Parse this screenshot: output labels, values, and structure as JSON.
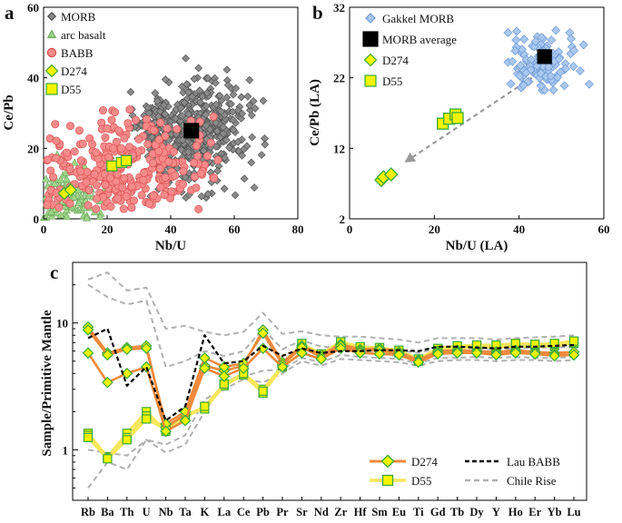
{
  "colors": {
    "morb": "#8a8a8a",
    "morb_stroke": "#4a4a4a",
    "arc": "#9fd58a",
    "arc_stroke": "#6aa55a",
    "babb": "#f58a8a",
    "babb_stroke": "#d84b4b",
    "d274": "#f4f400",
    "d274_stroke": "#3aa83a",
    "d55": "#f4f400",
    "d55_stroke": "#3aa83a",
    "gakkel": "#a9c8ef",
    "gakkel_stroke": "#6f9ad6",
    "avg": "#000000",
    "d274_line": "#f08a3c",
    "d55_line": "#f6e65a",
    "lau": "#000000",
    "chile": "#b0b0b0",
    "arrow": "#9a9a9a"
  },
  "chart_data": [
    {
      "panel": "a",
      "type": "scatter",
      "xlabel": "Nb/U",
      "ylabel": "Ce/Pb",
      "xlim": [
        0,
        80
      ],
      "ylim": [
        0,
        60
      ],
      "xticks": [
        "0",
        "20",
        "40",
        "60",
        "80"
      ],
      "yticks": [
        "0",
        "20",
        "40",
        "60"
      ],
      "legend": [
        "MORB",
        "arc basalt",
        "BABB",
        "D274",
        "D55"
      ],
      "series": [
        {
          "name": "MORB",
          "marker": "diamond",
          "cloud": {
            "center": [
              47,
              25
            ],
            "spread": [
              9,
              7
            ],
            "n": 520,
            "xrange": [
              15,
              78
            ],
            "yrange": [
              5,
              59
            ]
          }
        },
        {
          "name": "arc basalt",
          "marker": "triangle",
          "cloud": {
            "center": [
              7,
              5
            ],
            "spread": [
              5,
              5
            ],
            "n": 110,
            "xrange": [
              0,
              40
            ],
            "yrange": [
              0,
              24
            ]
          }
        },
        {
          "name": "BABB",
          "marker": "circle",
          "cloud": {
            "center": [
              25,
              14
            ],
            "spread": [
              15,
              7
            ],
            "n": 300,
            "xrange": [
              0,
              55
            ],
            "yrange": [
              2,
              38
            ]
          }
        },
        {
          "name": "D274",
          "marker": "diamond",
          "x": [
            6.5,
            8.5
          ],
          "y": [
            7.2,
            8.2
          ]
        },
        {
          "name": "D55",
          "marker": "square",
          "x": [
            21.5,
            24.5,
            26
          ],
          "y": [
            15,
            16,
            16.5
          ]
        }
      ],
      "highlight": {
        "name": "MORB average",
        "x": [
          46.5
        ],
        "y": [
          25
        ]
      }
    },
    {
      "panel": "b",
      "type": "scatter",
      "xlabel": "Nb/U (LA)",
      "ylabel": "Ce/Pb (LA)",
      "xlim": [
        0,
        60
      ],
      "ylim": [
        2,
        32
      ],
      "xticks": [
        "0",
        "20",
        "40",
        "60"
      ],
      "yticks": [
        "2",
        "12",
        "22",
        "32"
      ],
      "legend": [
        "Gakkel MORB",
        "MORB average",
        "D274",
        "D55"
      ],
      "series": [
        {
          "name": "Gakkel MORB",
          "marker": "diamond",
          "cloud": {
            "center": [
              45,
              24
            ],
            "spread": [
              4.5,
              2.2
            ],
            "n": 120,
            "xrange": [
              36,
              57
            ],
            "yrange": [
              20,
              29
            ]
          }
        },
        {
          "name": "MORB average",
          "marker": "square",
          "x": [
            46
          ],
          "y": [
            25
          ]
        },
        {
          "name": "D274",
          "marker": "diamond",
          "x": [
            7.5,
            8,
            9.8
          ],
          "y": [
            7.5,
            7.9,
            8.3
          ]
        },
        {
          "name": "D55",
          "marker": "square",
          "x": [
            22,
            23.5,
            25,
            25.5
          ],
          "y": [
            15.5,
            16.2,
            16.8,
            16.3
          ]
        }
      ],
      "arrow": {
        "from": [
          43,
          22
        ],
        "to": [
          13,
          10
        ]
      }
    },
    {
      "panel": "c",
      "type": "line",
      "ylabel": "Sample/Primitive Mantle",
      "yscale": "log",
      "ylim": [
        0.4,
        30
      ],
      "yticks": [
        "1",
        "10"
      ],
      "categories": [
        "Rb",
        "Ba",
        "Th",
        "U",
        "Nb",
        "Ta",
        "K",
        "La",
        "Ce",
        "Pb",
        "Pr",
        "Sr",
        "Nd",
        "Zr",
        "Hf",
        "Sm",
        "Eu",
        "Ti",
        "Gd",
        "Tb",
        "Dy",
        "Y",
        "Ho",
        "Er",
        "Yb",
        "Lu"
      ],
      "legend": [
        "D274",
        "Lau BABB",
        "D55",
        "Chile Rise"
      ],
      "series": [
        {
          "name": "D274 a",
          "group": "D274",
          "values": [
            9.3,
            5.8,
            6.4,
            6.6,
            1.5,
            1.9,
            4.6,
            4.2,
            4.6,
            8.8,
            4.9,
            6.6,
            5.6,
            6.8,
            6.2,
            6.3,
            5.9,
            5.1,
            6.0,
            6.1,
            6.0,
            5.9,
            6.1,
            5.9,
            5.8,
            5.9
          ]
        },
        {
          "name": "D274 b",
          "group": "D274",
          "values": [
            8.8,
            5.6,
            6.2,
            6.3,
            1.6,
            2.0,
            5.3,
            4.5,
            4.8,
            8.3,
            4.7,
            6.4,
            5.4,
            6.6,
            6.0,
            6.1,
            5.7,
            5.0,
            5.8,
            5.9,
            5.8,
            5.7,
            5.9,
            5.7,
            5.6,
            5.6
          ]
        },
        {
          "name": "D274 c",
          "group": "D274",
          "values": [
            5.8,
            3.4,
            4.0,
            4.5,
            1.4,
            1.7,
            4.4,
            3.8,
            4.4,
            6.3,
            4.5,
            5.8,
            5.2,
            6.3,
            5.8,
            5.7,
            5.6,
            4.9,
            5.7,
            5.8,
            5.8,
            5.6,
            5.8,
            5.7,
            5.5,
            5.6
          ]
        },
        {
          "name": "D55 a",
          "group": "D55",
          "values": [
            1.35,
            0.88,
            1.35,
            2.0,
            1.4,
            1.8,
            2.2,
            3.3,
            4.0,
            3.0,
            4.6,
            6.5,
            5.5,
            6.6,
            6.2,
            6.0,
            5.8,
            5.0,
            6.0,
            6.3,
            6.5,
            6.4,
            6.6,
            6.5,
            6.6,
            6.9
          ]
        },
        {
          "name": "D55 b",
          "group": "D55",
          "values": [
            1.3,
            0.86,
            1.25,
            1.85,
            1.5,
            1.9,
            2.1,
            3.2,
            3.9,
            2.8,
            4.5,
            6.8,
            5.6,
            7.0,
            6.4,
            6.3,
            6.0,
            5.1,
            6.2,
            6.5,
            6.6,
            6.6,
            6.8,
            6.7,
            6.8,
            7.0
          ]
        },
        {
          "name": "D55 c",
          "group": "D55",
          "values": [
            1.25,
            0.85,
            1.2,
            1.75,
            1.45,
            1.85,
            2.2,
            3.3,
            4.0,
            2.9,
            4.6,
            6.9,
            5.7,
            7.1,
            6.5,
            6.4,
            6.1,
            5.2,
            6.3,
            6.6,
            6.7,
            6.7,
            6.9,
            6.8,
            6.9,
            7.2
          ]
        },
        {
          "name": "Lau BABB",
          "group": "Lau BABB",
          "values": [
            7.6,
            9.0,
            3.2,
            4.5,
            1.7,
            2.2,
            8.0,
            4.8,
            5.0,
            6.6,
            5.5,
            6.3,
            5.8,
            6.0,
            6.0,
            6.1,
            6.1,
            6.0,
            6.5,
            6.5,
            6.4,
            6.3,
            6.5,
            6.5,
            6.6,
            6.7
          ]
        },
        {
          "name": "Chile Rise a",
          "group": "Chile Rise",
          "values": [
            22,
            25,
            18,
            19,
            9,
            9.5,
            8.5,
            8.0,
            8.5,
            12,
            8.2,
            8.6,
            8.0,
            7.8,
            7.8,
            7.6,
            7.4,
            7.0,
            7.6,
            7.6,
            7.6,
            7.4,
            7.6,
            7.7,
            7.8,
            8.0
          ]
        },
        {
          "name": "Chile Rise b",
          "group": "Chile Rise",
          "values": [
            20,
            16,
            14,
            15,
            4.5,
            5.0,
            6.0,
            5.5,
            6.0,
            9.0,
            6.2,
            7.3,
            6.5,
            6.4,
            6.4,
            6.3,
            6.1,
            5.8,
            6.3,
            6.3,
            6.3,
            6.2,
            6.3,
            6.4,
            6.4,
            6.5
          ]
        },
        {
          "name": "Chile Rise c",
          "group": "Chile Rise",
          "values": [
            0.5,
            0.8,
            0.7,
            1.2,
            1.1,
            1.3,
            2.5,
            3.0,
            3.6,
            3.4,
            4.0,
            5.0,
            4.6,
            5.2,
            5.1,
            5.0,
            4.9,
            4.6,
            5.0,
            5.1,
            5.1,
            5.0,
            5.1,
            5.1,
            5.0,
            5.1
          ]
        },
        {
          "name": "Chile Rise d",
          "group": "Chile Rise",
          "values": [
            1.0,
            0.95,
            0.9,
            1.2,
            0.95,
            1.1,
            2.0,
            3.4,
            3.8,
            4.2,
            4.3,
            5.3,
            4.9,
            5.6,
            5.4,
            5.3,
            5.2,
            4.8,
            5.3,
            5.3,
            5.4,
            5.3,
            5.4,
            5.3,
            5.3,
            5.4
          ]
        }
      ]
    }
  ]
}
